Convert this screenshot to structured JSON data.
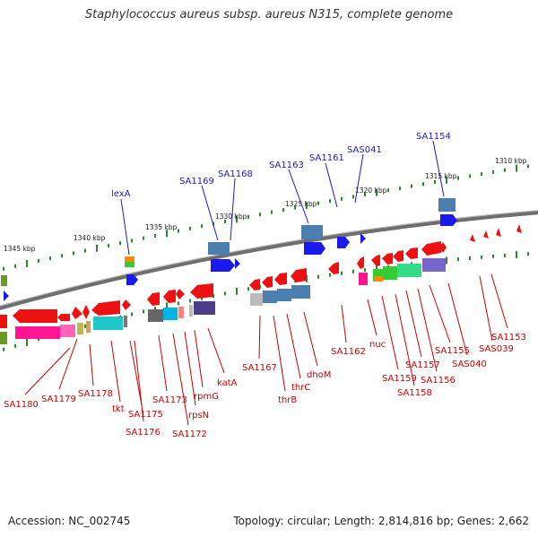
{
  "title": "Staphylococcus aureus subsp. aureus N315, complete genome",
  "footer": {
    "accession": "Accession: NC_002745",
    "summary": "Topology: circular; Length: 2,814,816 bp; Genes: 2,662"
  },
  "scale_ticks": [
    "1345 kbp",
    "1340 kbp",
    "1335 kbp",
    "1330 kbp",
    "1325 kbp",
    "1320 kbp",
    "1315 kbp",
    "1310 kbp"
  ],
  "top_labels": [
    "lexA",
    "SA1169",
    "SA1168",
    "SA1163",
    "SA1161",
    "SAS041",
    "SA1154"
  ],
  "bottom_labels": [
    "SA1180",
    "SA1179",
    "SA1178",
    "tkt",
    "SA1175",
    "SA1176",
    "SA1173",
    "SA1172",
    "rpsN",
    "rpmG",
    "katA",
    "SA1167",
    "thrB",
    "thrC",
    "dhoM",
    "SA1162",
    "nuc",
    "SA1159",
    "SA1158",
    "SA1157",
    "SA1156",
    "SA1155",
    "SAS040",
    "SAS039",
    "SA1153"
  ],
  "colors": {
    "forward_label": "#1a1acc",
    "reverse_label": "#cc0000",
    "backbone": "#777777",
    "tick_mark": "#2a8a2a"
  }
}
